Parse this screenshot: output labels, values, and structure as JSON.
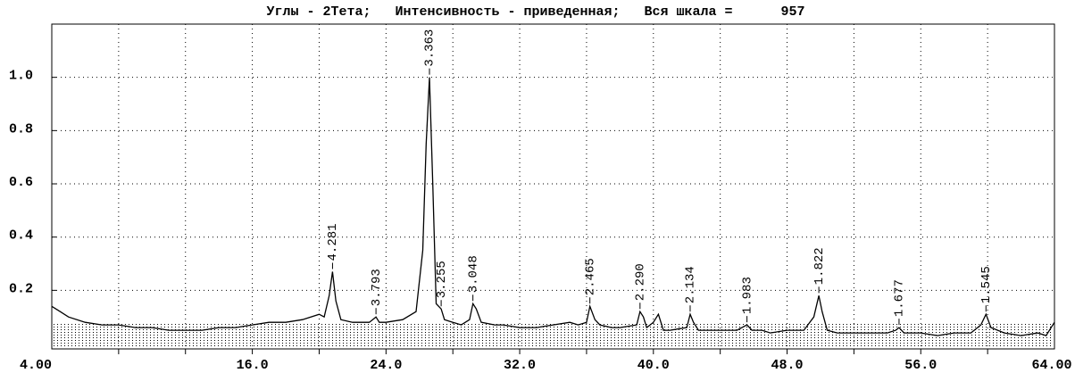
{
  "chart_data": {
    "type": "line",
    "title": "Углы - 2Тета;   Интенсивность - приведенная;   Вся шкала =      957",
    "x": [
      4,
      4.5,
      5,
      6,
      7,
      8,
      9,
      10,
      11,
      12,
      13,
      14,
      15,
      16,
      17,
      18,
      19,
      20,
      20.3,
      20.6,
      20.8,
      21.0,
      21.3,
      22,
      23,
      23.2,
      23.4,
      23.6,
      24,
      25,
      25.8,
      26.2,
      26.4,
      26.6,
      26.8,
      27.0,
      27.3,
      27.5,
      28,
      28.5,
      29.0,
      29.2,
      29.4,
      29.7,
      30.5,
      31,
      32,
      33,
      34,
      35,
      35.5,
      36,
      36.2,
      36.5,
      36.8,
      37.5,
      38,
      39,
      39.2,
      39.4,
      39.6,
      40.0,
      40.3,
      40.6,
      41,
      42,
      42.2,
      42.4,
      42.7,
      43,
      44,
      45,
      45.3,
      45.6,
      45.9,
      46.5,
      47,
      48,
      49,
      49.6,
      49.9,
      50.1,
      50.4,
      51,
      52,
      53,
      54,
      54.5,
      54.7,
      55,
      56,
      57,
      58,
      59,
      59.6,
      59.9,
      60.2,
      61,
      62,
      63,
      63.5,
      64
    ],
    "series": [
      {
        "color": "#000000",
        "values": [
          0.14,
          0.12,
          0.1,
          0.08,
          0.07,
          0.07,
          0.06,
          0.06,
          0.05,
          0.05,
          0.05,
          0.06,
          0.06,
          0.07,
          0.08,
          0.08,
          0.09,
          0.11,
          0.1,
          0.18,
          0.27,
          0.16,
          0.09,
          0.08,
          0.08,
          0.09,
          0.1,
          0.08,
          0.08,
          0.09,
          0.12,
          0.35,
          0.75,
          1.0,
          0.6,
          0.15,
          0.13,
          0.09,
          0.08,
          0.07,
          0.09,
          0.15,
          0.13,
          0.08,
          0.07,
          0.07,
          0.06,
          0.06,
          0.07,
          0.08,
          0.07,
          0.08,
          0.14,
          0.09,
          0.07,
          0.06,
          0.06,
          0.07,
          0.12,
          0.1,
          0.06,
          0.08,
          0.11,
          0.05,
          0.05,
          0.06,
          0.11,
          0.08,
          0.05,
          0.05,
          0.05,
          0.05,
          0.06,
          0.07,
          0.05,
          0.05,
          0.04,
          0.05,
          0.05,
          0.1,
          0.18,
          0.12,
          0.05,
          0.04,
          0.04,
          0.04,
          0.04,
          0.05,
          0.06,
          0.04,
          0.04,
          0.03,
          0.04,
          0.04,
          0.07,
          0.11,
          0.06,
          0.04,
          0.03,
          0.04,
          0.03,
          0.08
        ]
      }
    ],
    "annotations": [
      {
        "x": 20.8,
        "y": 0.27,
        "label": "4.281"
      },
      {
        "x": 23.4,
        "y": 0.1,
        "label": "3.793"
      },
      {
        "x": 26.6,
        "y": 1.0,
        "label": "3.363"
      },
      {
        "x": 27.3,
        "y": 0.13,
        "label": "3.255"
      },
      {
        "x": 29.2,
        "y": 0.15,
        "label": "3.048"
      },
      {
        "x": 36.2,
        "y": 0.14,
        "label": "2.465"
      },
      {
        "x": 39.2,
        "y": 0.12,
        "label": "2.290"
      },
      {
        "x": 42.2,
        "y": 0.11,
        "label": "2.134"
      },
      {
        "x": 45.6,
        "y": 0.07,
        "label": "1.983"
      },
      {
        "x": 49.9,
        "y": 0.18,
        "label": "1.822"
      },
      {
        "x": 54.7,
        "y": 0.06,
        "label": "1.677"
      },
      {
        "x": 59.9,
        "y": 0.11,
        "label": "1.545"
      }
    ],
    "xlim": [
      4,
      64
    ],
    "ylim": [
      -0.02,
      1.2
    ],
    "xticks": [
      {
        "value": 4,
        "label": "4.00"
      },
      {
        "value": 16,
        "label": "16.0"
      },
      {
        "value": 24,
        "label": "24.0"
      },
      {
        "value": 32,
        "label": "32.0"
      },
      {
        "value": 40,
        "label": "40.0"
      },
      {
        "value": 48,
        "label": "48.0"
      },
      {
        "value": 56,
        "label": "56.0"
      },
      {
        "value": 64,
        "label": "64.00"
      }
    ],
    "xgrid": [
      8,
      12,
      20,
      28,
      36,
      44,
      52,
      60
    ],
    "yticks": [
      0.2,
      0.4,
      0.6,
      {
        "value": 0.8,
        "label": "0.8"
      },
      {
        "value": 1,
        "label": "1.0"
      }
    ],
    "grid": true
  }
}
